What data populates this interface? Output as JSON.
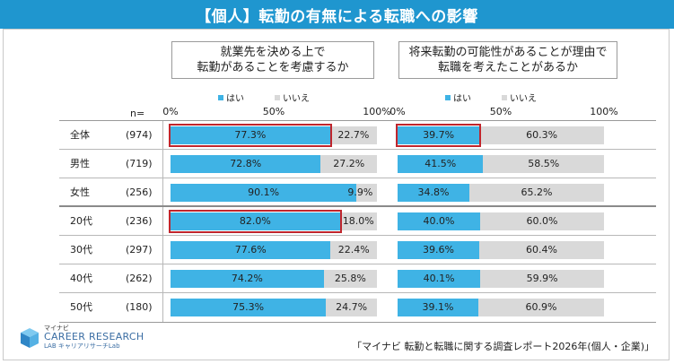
{
  "title": "【個人】転勤の有無による転職への影響",
  "chart_data": {
    "type": "bar",
    "stacked": true,
    "orientation": "horizontal",
    "n_header": "n=",
    "categories": [
      "全体",
      "男性",
      "女性",
      "20代",
      "30代",
      "40代",
      "50代"
    ],
    "n_values": [
      "(974)",
      "(719)",
      "(256)",
      "(236)",
      "(297)",
      "(262)",
      "(180)"
    ],
    "axis_ticks": [
      "0%",
      "50%",
      "100%"
    ],
    "legend": [
      "はい",
      "いいえ"
    ],
    "colors": {
      "yes": "#3fb3e5",
      "no": "#d9d9d9",
      "highlight": "#c0262d"
    },
    "panels": [
      {
        "question": [
          "就業先を決める上で",
          "転勤があることを考慮するか"
        ],
        "series": [
          {
            "name": "はい",
            "values": [
              77.3,
              72.8,
              90.1,
              82.0,
              77.6,
              74.2,
              75.3
            ]
          },
          {
            "name": "いいえ",
            "values": [
              22.7,
              27.2,
              9.9,
              18.0,
              22.4,
              25.8,
              24.7
            ]
          }
        ],
        "highlight_rows": [
          0,
          3
        ]
      },
      {
        "question": [
          "将来転勤の可能性があることが理由で",
          "転職を考えたことがあるか"
        ],
        "series": [
          {
            "name": "はい",
            "values": [
              39.7,
              41.5,
              34.8,
              40.0,
              39.6,
              40.1,
              39.1
            ]
          },
          {
            "name": "いいえ",
            "values": [
              60.3,
              58.5,
              65.2,
              60.0,
              60.4,
              59.9,
              60.9
            ]
          }
        ],
        "highlight_rows": [
          0
        ]
      }
    ],
    "xlim": [
      0,
      100
    ]
  },
  "logo": {
    "small": "マイナビ",
    "main": "CAREER RESEARCH",
    "sub": "LAB  キャリアリサーチLab"
  },
  "source": "「マイナビ 転勤と転職に関する調査レポート2026年(個人・企業)」"
}
